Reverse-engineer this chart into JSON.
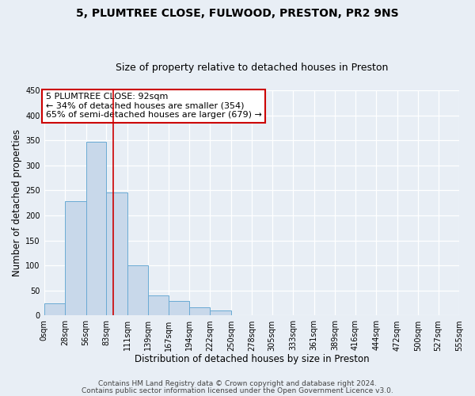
{
  "title": "5, PLUMTREE CLOSE, FULWOOD, PRESTON, PR2 9NS",
  "subtitle": "Size of property relative to detached houses in Preston",
  "xlabel": "Distribution of detached houses by size in Preston",
  "ylabel": "Number of detached properties",
  "bin_edges": [
    0,
    28,
    56,
    83,
    111,
    139,
    167,
    194,
    222,
    250,
    278,
    305,
    333,
    361,
    389,
    416,
    444,
    472,
    500,
    527,
    555
  ],
  "bar_heights": [
    25,
    228,
    347,
    246,
    101,
    40,
    30,
    16,
    10,
    1,
    0,
    0,
    0,
    0,
    0,
    0,
    0,
    1,
    0,
    0
  ],
  "bar_color": "#c8d8ea",
  "bar_edge_color": "#6aaad4",
  "ylim": [
    0,
    450
  ],
  "yticks": [
    0,
    50,
    100,
    150,
    200,
    250,
    300,
    350,
    400,
    450
  ],
  "xtick_labels": [
    "0sqm",
    "28sqm",
    "56sqm",
    "83sqm",
    "111sqm",
    "139sqm",
    "167sqm",
    "194sqm",
    "222sqm",
    "250sqm",
    "278sqm",
    "305sqm",
    "333sqm",
    "361sqm",
    "389sqm",
    "416sqm",
    "444sqm",
    "472sqm",
    "500sqm",
    "527sqm",
    "555sqm"
  ],
  "property_size": 92,
  "vline_color": "#cc0000",
  "annotation_title": "5 PLUMTREE CLOSE: 92sqm",
  "annotation_line1": "← 34% of detached houses are smaller (354)",
  "annotation_line2": "65% of semi-detached houses are larger (679) →",
  "annotation_box_color": "#ffffff",
  "annotation_box_edge": "#cc0000",
  "footer1": "Contains HM Land Registry data © Crown copyright and database right 2024.",
  "footer2": "Contains public sector information licensed under the Open Government Licence v3.0.",
  "bg_color": "#e8eef5",
  "plot_bg_color": "#e8eef5",
  "grid_color": "#ffffff",
  "title_fontsize": 10,
  "subtitle_fontsize": 9,
  "axis_label_fontsize": 8.5,
  "tick_fontsize": 7,
  "footer_fontsize": 6.5,
  "annotation_fontsize": 8
}
